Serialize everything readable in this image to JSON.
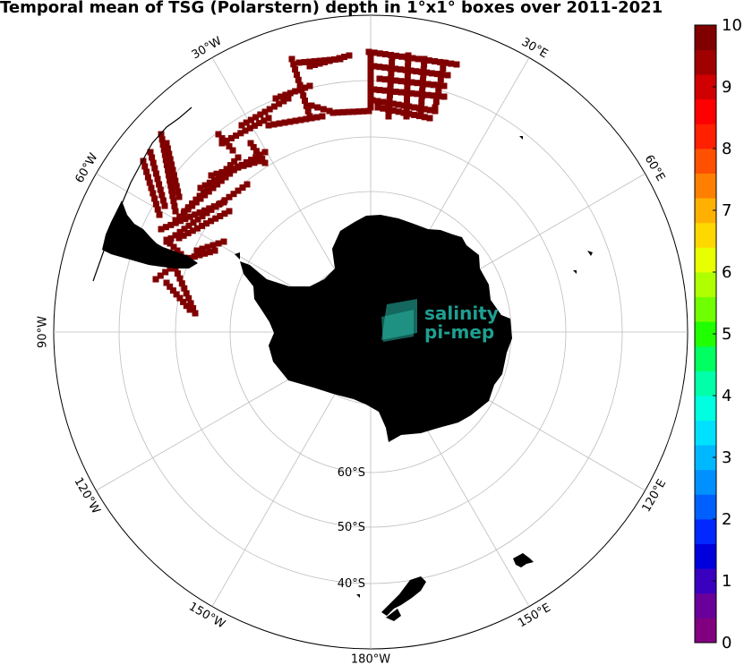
{
  "title": "Temporal mean of TSG (Polarstern) depth in 1°x1° boxes over 2011-2021",
  "map": {
    "projection": "south-polar-stereographic",
    "longitude_labels": [
      {
        "text": "30°W",
        "lon": -30
      },
      {
        "text": "30°E",
        "lon": 30
      },
      {
        "text": "60°W",
        "lon": -60
      },
      {
        "text": "60°E",
        "lon": 60
      },
      {
        "text": "90°W",
        "lon": -90
      },
      {
        "text": "120°W",
        "lon": -120
      },
      {
        "text": "120°E",
        "lon": 120
      },
      {
        "text": "150°W",
        "lon": -150
      },
      {
        "text": "150°E",
        "lon": 150
      },
      {
        "text": "180°W",
        "lon": 180
      }
    ],
    "latitude_labels": [
      {
        "text": "60°S",
        "lat": -60
      },
      {
        "text": "50°S",
        "lat": -50
      },
      {
        "text": "40°S",
        "lat": -40
      }
    ],
    "colors": {
      "land": "#808080",
      "data": "#800000",
      "grid": "#bdbdbd"
    }
  },
  "colorbar": {
    "min": 0,
    "max": 10,
    "tick_labels": [
      "0",
      "1",
      "2",
      "3",
      "4",
      "5",
      "6",
      "7",
      "8",
      "9",
      "10"
    ],
    "colors": [
      "#800080",
      "#6a009a",
      "#3a00c0",
      "#0000dd",
      "#0028ff",
      "#0060ff",
      "#0090ff",
      "#00b8ff",
      "#00e0ff",
      "#00ffe0",
      "#00ffa8",
      "#00ff60",
      "#20ff00",
      "#70ff00",
      "#b0ff00",
      "#e8ff00",
      "#ffd800",
      "#ffb000",
      "#ff8000",
      "#ff5000",
      "#ff2000",
      "#ff0000",
      "#d00000",
      "#a00000",
      "#800000"
    ]
  },
  "logo": {
    "line1": "salinity",
    "line2": "pi-mep"
  }
}
